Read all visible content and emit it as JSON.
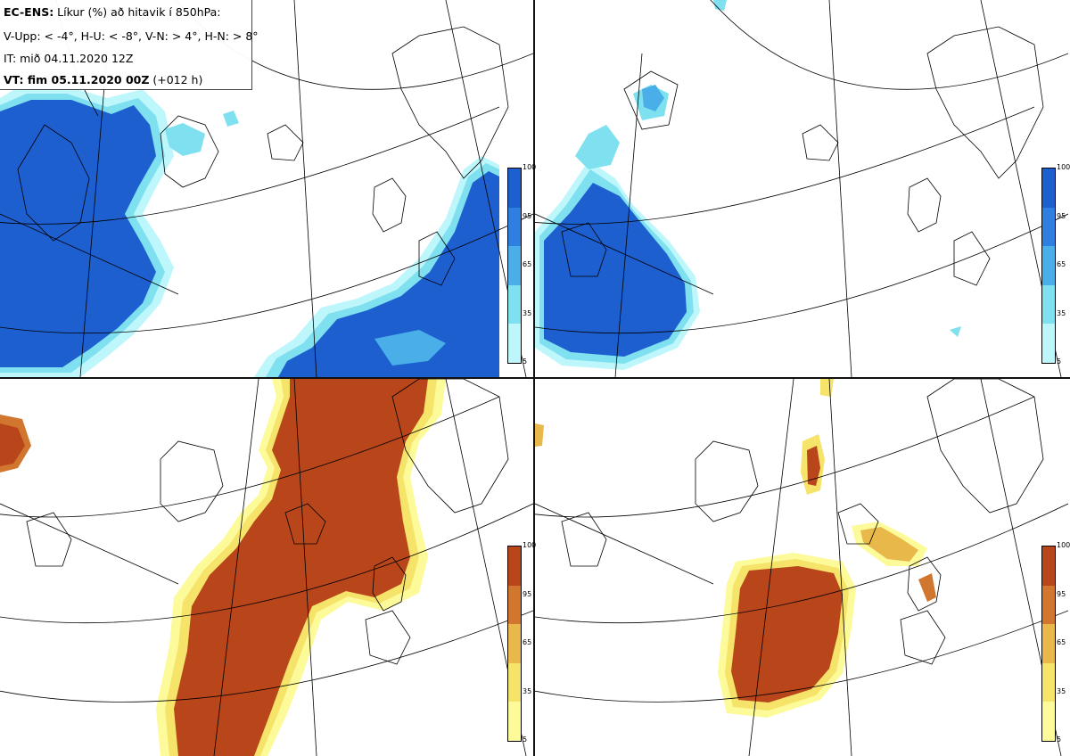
{
  "header": {
    "line1_bold": "EC-ENS:",
    "line1_rest": " Líkur (%) að hitavik í 850hPa:",
    "line2": "V-Upp: < -4°, H-U: < -8°, V-N: > 4°, H-N: > 8°",
    "line3": "IT: mið 04.11.2020 12Z",
    "line4_bold": "VT: fim 05.11.2020 00Z",
    "line4_rest": " (+012 h)"
  },
  "colorbar": {
    "ticks": [
      "100",
      "95",
      "65",
      "35",
      "5"
    ],
    "cold_colors": [
      "#1e5fd0",
      "#2f7fe0",
      "#4aaee8",
      "#7fe0f0",
      "#bdf6fb"
    ],
    "warm_colors": [
      "#b8461a",
      "#d0762e",
      "#e8b84a",
      "#f6e36a",
      "#fdfa99"
    ]
  },
  "panels": [
    {
      "id": "cold-4",
      "scheme": "cold"
    },
    {
      "id": "cold-8",
      "scheme": "cold"
    },
    {
      "id": "warm-4",
      "scheme": "warm"
    },
    {
      "id": "warm-8",
      "scheme": "warm"
    }
  ]
}
